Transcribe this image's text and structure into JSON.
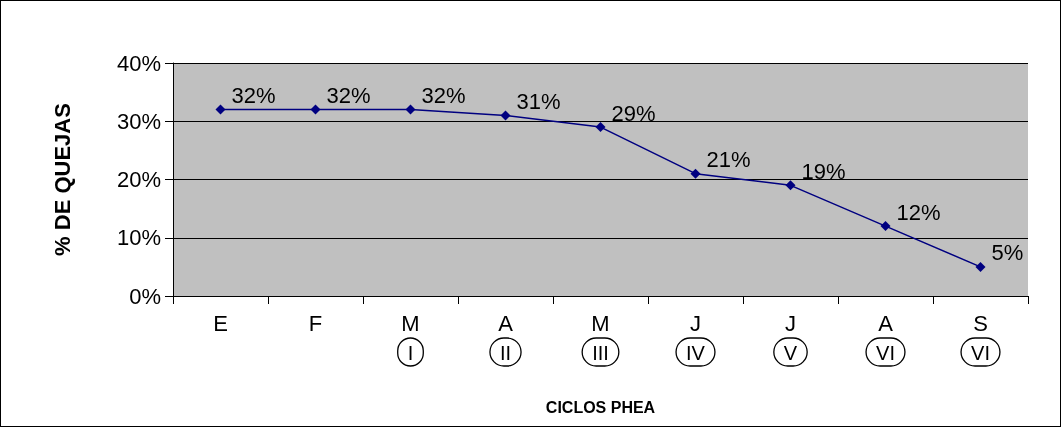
{
  "chart_data": {
    "type": "line",
    "xlabel": "CICLOS PHEA",
    "ylabel": "% DE QUEJAS",
    "categories": [
      "E",
      "F",
      "M\nI",
      "A\nII",
      "M\nIII",
      "J\nIV",
      "J\nV",
      "A\nVI",
      "S\nVI"
    ],
    "series": [
      {
        "color": "#000080",
        "values": [
          32,
          32,
          32,
          31,
          29,
          21,
          19,
          12,
          5
        ],
        "value_labels": [
          "32%",
          "32%",
          "32%",
          "31%",
          "29%",
          "21%",
          "19%",
          "12%",
          "5%"
        ]
      }
    ],
    "ylim": [
      0,
      40
    ],
    "yticks": [
      {
        "value": 0,
        "label": "0%"
      },
      {
        "value": 10,
        "label": "10%"
      },
      {
        "value": 20,
        "label": "20%"
      },
      {
        "value": 30,
        "label": "30%"
      },
      {
        "value": 40,
        "label": "40%"
      }
    ],
    "grid": "y",
    "marker": "diamond",
    "line_style": "solid"
  }
}
